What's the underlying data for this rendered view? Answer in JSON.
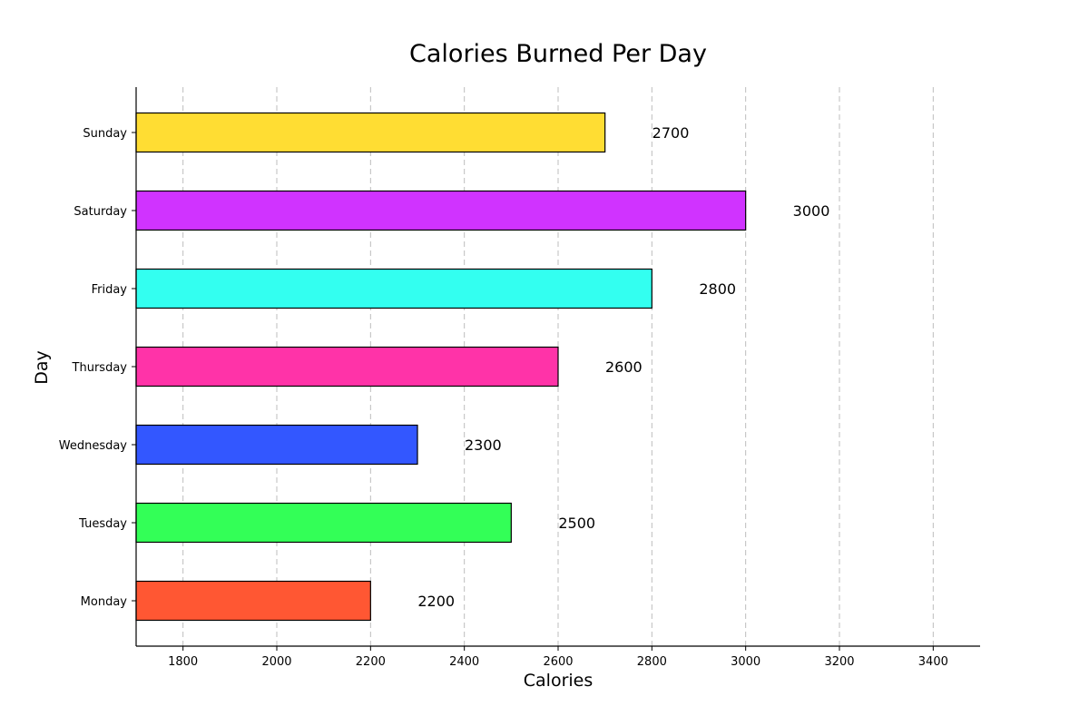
{
  "chart_data": {
    "type": "bar",
    "orientation": "horizontal",
    "title": "Calories Burned Per Day",
    "xlabel": "Calories",
    "ylabel": "Day",
    "xlim": [
      1700,
      3500
    ],
    "xticks": [
      1800,
      2000,
      2200,
      2400,
      2600,
      2800,
      3000,
      3200,
      3400
    ],
    "xtick_labels": [
      "1800",
      "2000",
      "2200",
      "2400",
      "2600",
      "2800",
      "3000",
      "3200",
      "3400"
    ],
    "grid": "x-dashed",
    "categories": [
      "Monday",
      "Tuesday",
      "Wednesday",
      "Thursday",
      "Friday",
      "Saturday",
      "Sunday"
    ],
    "values": [
      2200,
      2500,
      2300,
      2600,
      2800,
      3000,
      2700
    ],
    "data_labels": [
      "2200",
      "2500",
      "2300",
      "2600",
      "2800",
      "3000",
      "2700"
    ],
    "colors": [
      "#ff5733",
      "#33ff57",
      "#3357ff",
      "#ff33a8",
      "#33fff0",
      "#d033ff",
      "#ffdd33"
    ]
  }
}
